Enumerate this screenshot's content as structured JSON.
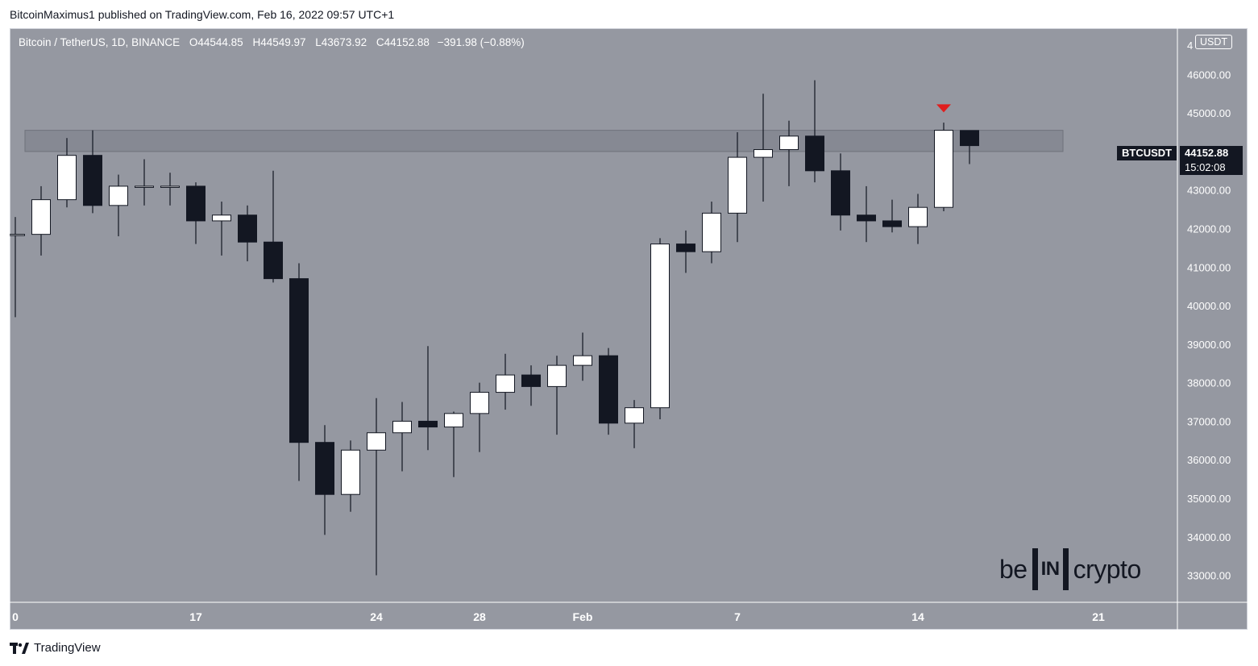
{
  "publisher_line": "BitcoinMaximus1 published on TradingView.com, Feb 16, 2022 09:57 UTC+1",
  "footer": {
    "brand": "TradingView",
    "icon": "tradingview-logo-icon"
  },
  "header": {
    "symbol": "Bitcoin / TetherUS, 1D, BINANCE",
    "o_label": "O",
    "o_value": "44544.85",
    "h_label": "H",
    "h_value": "44549.97",
    "l_label": "L",
    "l_value": "43673.92",
    "c_label": "C",
    "c_value": "44152.88",
    "change": "−391.98 (−0.88%)"
  },
  "currency": "USDT",
  "price_axis_partial_label": "4",
  "price_tag": {
    "symbol": "BTCUSDT",
    "price": "44152.88",
    "countdown": "15:02:08"
  },
  "watermark": {
    "left": "be",
    "bracket": "IN",
    "right": "crypto"
  },
  "colors": {
    "background": "#9598a1",
    "up_candle": "#ffffff",
    "down_candle": "#131722",
    "zone_fill": "#868993",
    "marker": "#e01e1e"
  },
  "chart_data": {
    "type": "candlestick",
    "symbol": "BTCUSDT",
    "interval": "1D",
    "ylim": [
      32300,
      47200
    ],
    "y_ticks": [
      33000,
      34000,
      35000,
      36000,
      37000,
      38000,
      39000,
      40000,
      41000,
      42000,
      43000,
      44000,
      45000,
      46000
    ],
    "y_tick_labels": [
      "33000.00",
      "34000.00",
      "35000.00",
      "36000.00",
      "37000.00",
      "38000.00",
      "39000.00",
      "40000.00",
      "41000.00",
      "42000.00",
      "43000.00",
      "44000.00",
      "45000.00",
      "46000.00"
    ],
    "x_tick_labels": [
      {
        "label": "0",
        "index": 0
      },
      {
        "label": "17",
        "index": 7
      },
      {
        "label": "24",
        "index": 14
      },
      {
        "label": "28",
        "index": 18
      },
      {
        "label": "Feb",
        "index": 22
      },
      {
        "label": "7",
        "index": 28
      },
      {
        "label": "14",
        "index": 35
      },
      {
        "label": "21",
        "index": 42
      }
    ],
    "candles": [
      {
        "o": 41850,
        "h": 42300,
        "l": 39700,
        "c": 41850
      },
      {
        "o": 41850,
        "h": 43100,
        "l": 41300,
        "c": 42750
      },
      {
        "o": 42750,
        "h": 44350,
        "l": 42550,
        "c": 43900
      },
      {
        "o": 43900,
        "h": 44550,
        "l": 42400,
        "c": 42600
      },
      {
        "o": 42600,
        "h": 43400,
        "l": 41800,
        "c": 43100
      },
      {
        "o": 43100,
        "h": 43800,
        "l": 42600,
        "c": 43100
      },
      {
        "o": 43100,
        "h": 43450,
        "l": 42600,
        "c": 43100
      },
      {
        "o": 43100,
        "h": 43200,
        "l": 41600,
        "c": 42200
      },
      {
        "o": 42200,
        "h": 42700,
        "l": 41300,
        "c": 42350
      },
      {
        "o": 42350,
        "h": 42600,
        "l": 41150,
        "c": 41650
      },
      {
        "o": 41650,
        "h": 43500,
        "l": 40600,
        "c": 40700
      },
      {
        "o": 40700,
        "h": 41100,
        "l": 35450,
        "c": 36450
      },
      {
        "o": 36450,
        "h": 36900,
        "l": 34050,
        "c": 35100
      },
      {
        "o": 35100,
        "h": 36500,
        "l": 34650,
        "c": 36250
      },
      {
        "o": 36250,
        "h": 37600,
        "l": 33000,
        "c": 36700
      },
      {
        "o": 36700,
        "h": 37500,
        "l": 35700,
        "c": 37000
      },
      {
        "o": 37000,
        "h": 38950,
        "l": 36250,
        "c": 36850
      },
      {
        "o": 36850,
        "h": 37250,
        "l": 35550,
        "c": 37200
      },
      {
        "o": 37200,
        "h": 38000,
        "l": 36200,
        "c": 37750
      },
      {
        "o": 37750,
        "h": 38750,
        "l": 37300,
        "c": 38200
      },
      {
        "o": 38200,
        "h": 38450,
        "l": 37400,
        "c": 37900
      },
      {
        "o": 37900,
        "h": 38700,
        "l": 36650,
        "c": 38450
      },
      {
        "o": 38450,
        "h": 39300,
        "l": 38050,
        "c": 38700
      },
      {
        "o": 38700,
        "h": 38900,
        "l": 36650,
        "c": 36950
      },
      {
        "o": 36950,
        "h": 37550,
        "l": 36300,
        "c": 37350
      },
      {
        "o": 37350,
        "h": 41750,
        "l": 37050,
        "c": 41600
      },
      {
        "o": 41600,
        "h": 41950,
        "l": 40850,
        "c": 41400
      },
      {
        "o": 41400,
        "h": 42700,
        "l": 41100,
        "c": 42400
      },
      {
        "o": 42400,
        "h": 44500,
        "l": 41650,
        "c": 43850
      },
      {
        "o": 43850,
        "h": 45500,
        "l": 42700,
        "c": 44050
      },
      {
        "o": 44050,
        "h": 44800,
        "l": 43100,
        "c": 44400
      },
      {
        "o": 44400,
        "h": 45850,
        "l": 43200,
        "c": 43500
      },
      {
        "o": 43500,
        "h": 43950,
        "l": 41950,
        "c": 42350
      },
      {
        "o": 42350,
        "h": 43100,
        "l": 41650,
        "c": 42200
      },
      {
        "o": 42200,
        "h": 42750,
        "l": 41900,
        "c": 42050
      },
      {
        "o": 42050,
        "h": 42900,
        "l": 41600,
        "c": 42550
      },
      {
        "o": 42550,
        "h": 44750,
        "l": 42450,
        "c": 44550
      },
      {
        "o": 44545,
        "h": 44550,
        "l": 43674,
        "c": 44153
      }
    ],
    "resistance_zone": {
      "low": 44000,
      "high": 44550,
      "from_index": 1,
      "to_index": 40
    },
    "marker": {
      "type": "down-triangle",
      "index": 36,
      "price": 45100
    }
  }
}
